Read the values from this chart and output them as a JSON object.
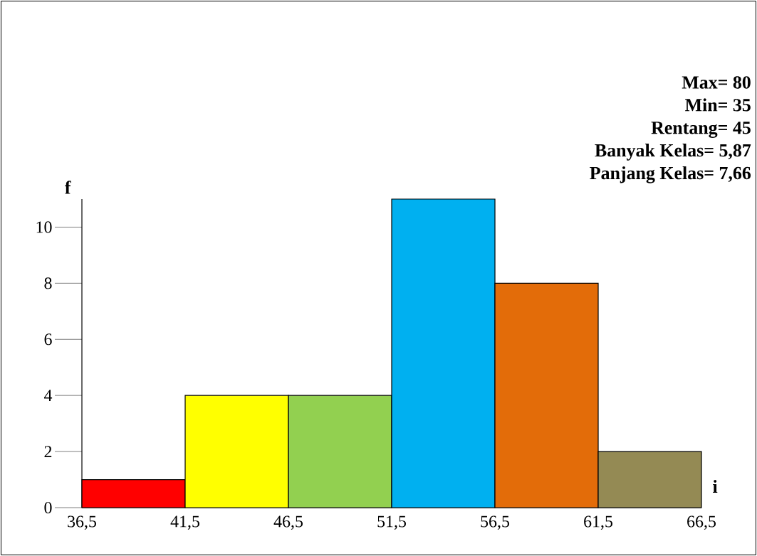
{
  "chart_data": {
    "type": "histogram",
    "bins": [
      36.5,
      41.5,
      46.5,
      51.5,
      56.5,
      61.5,
      66.5
    ],
    "values": [
      1,
      4,
      4,
      11,
      8,
      2
    ],
    "colors": [
      "#ff0000",
      "#ffff00",
      "#92d050",
      "#00b0f0",
      "#e36c09",
      "#948a54"
    ],
    "xlabel": "i",
    "ylabel": "f",
    "xlim": [
      36.5,
      66.5
    ],
    "xticks": [
      {
        "value": 36.5,
        "label": "36,5"
      },
      {
        "value": 41.5,
        "label": "41,5"
      },
      {
        "value": 46.5,
        "label": "46,5"
      },
      {
        "value": 51.5,
        "label": "51,5"
      },
      {
        "value": 56.5,
        "label": "56,5"
      },
      {
        "value": 61.5,
        "label": "61,5"
      },
      {
        "value": 66.5,
        "label": "66,5"
      }
    ],
    "ylim": [
      0,
      11
    ],
    "yticks": [
      0,
      2,
      4,
      6,
      8,
      10
    ],
    "annotations": [
      "Max= 80",
      "Min= 35",
      "Rentang= 45",
      "Banyak Kelas= 5,87",
      "Panjang Kelas= 7,66"
    ]
  }
}
